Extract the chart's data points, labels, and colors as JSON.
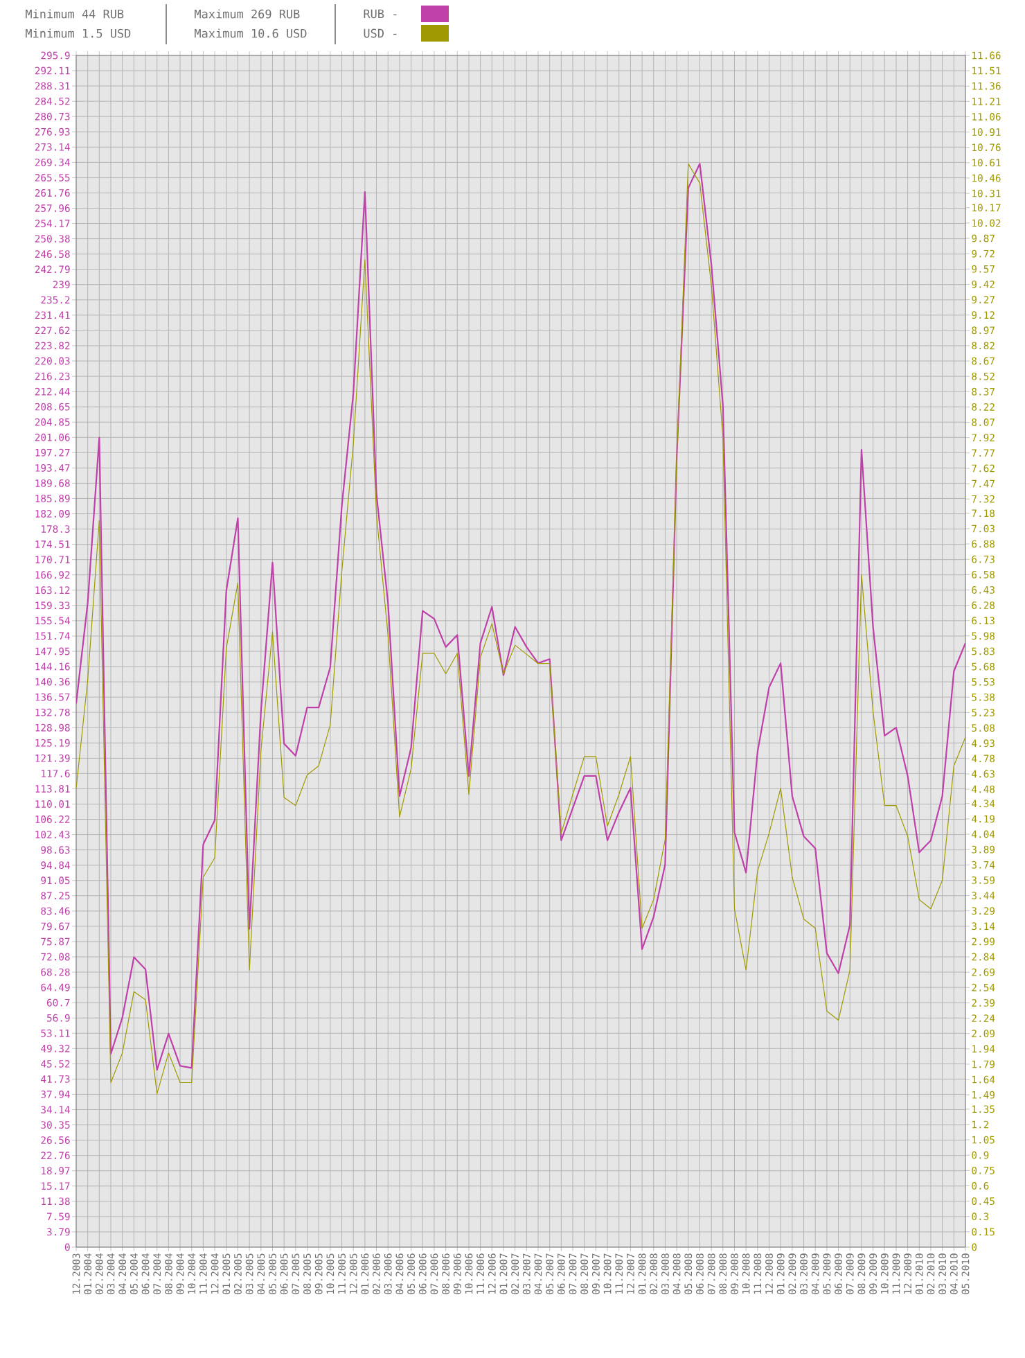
{
  "chart_data": {
    "type": "line",
    "annotations": [
      "Minimum 44 RUB",
      "Minimum 1.5 USD",
      "Maximum 269 RUB",
      "Maximum 10.6 USD"
    ],
    "categories": [
      "12.2003",
      "01.2004",
      "02.2004",
      "03.2004",
      "04.2004",
      "05.2004",
      "06.2004",
      "07.2004",
      "08.2004",
      "09.2004",
      "10.2004",
      "11.2004",
      "12.2004",
      "01.2005",
      "02.2005",
      "03.2005",
      "04.2005",
      "05.2005",
      "06.2005",
      "07.2005",
      "08.2005",
      "09.2005",
      "10.2005",
      "11.2005",
      "12.2005",
      "01.2006",
      "02.2006",
      "03.2006",
      "04.2006",
      "05.2006",
      "06.2006",
      "07.2006",
      "08.2006",
      "09.2006",
      "10.2006",
      "11.2006",
      "12.2006",
      "01.2007",
      "02.2007",
      "03.2007",
      "04.2007",
      "05.2007",
      "06.2007",
      "07.2007",
      "08.2007",
      "09.2007",
      "10.2007",
      "11.2007",
      "12.2007",
      "01.2008",
      "02.2008",
      "03.2008",
      "04.2008",
      "05.2008",
      "06.2008",
      "07.2008",
      "08.2008",
      "09.2008",
      "10.2008",
      "11.2008",
      "12.2008",
      "01.2009",
      "02.2009",
      "03.2009",
      "04.2009",
      "05.2009",
      "06.2009",
      "07.2009",
      "08.2009",
      "09.2009",
      "10.2009",
      "11.2009",
      "12.2009",
      "01.2010",
      "02.2010",
      "03.2010",
      "04.2010",
      "05.2010"
    ],
    "series": [
      {
        "name": "RUB -",
        "color": "#c040aa",
        "axis": "y",
        "values": [
          135,
          160,
          201,
          48,
          57,
          72,
          69,
          44,
          53,
          45,
          44.5,
          100,
          106,
          163,
          181,
          79,
          133,
          170,
          125,
          122,
          134,
          134,
          144,
          184,
          212,
          262,
          187,
          160,
          112,
          124,
          158,
          156,
          149,
          152,
          117,
          150,
          159,
          142,
          154,
          149,
          145,
          146,
          101,
          109,
          117,
          117,
          101,
          108,
          114,
          74,
          82,
          95,
          196,
          263,
          269,
          244,
          209,
          103,
          93,
          123,
          139,
          145,
          112,
          102,
          99,
          73,
          68,
          80,
          198,
          154,
          127,
          129,
          117,
          98,
          101,
          112,
          143,
          150
        ]
      },
      {
        "name": "USD -",
        "color": "#a09a00",
        "axis": "y2",
        "values": [
          4.49,
          5.55,
          7.11,
          1.61,
          1.9,
          2.5,
          2.42,
          1.5,
          1.9,
          1.61,
          1.61,
          3.62,
          3.81,
          5.86,
          6.5,
          2.71,
          4.86,
          6.02,
          4.4,
          4.32,
          4.62,
          4.71,
          5.11,
          6.61,
          7.86,
          9.66,
          7.17,
          5.99,
          4.21,
          4.68,
          5.81,
          5.81,
          5.61,
          5.81,
          4.43,
          5.77,
          6.1,
          5.61,
          5.89,
          5.8,
          5.71,
          5.71,
          4.05,
          4.43,
          4.8,
          4.8,
          4.12,
          4.43,
          4.8,
          3.12,
          3.4,
          3.99,
          7.73,
          10.6,
          10.41,
          9.41,
          7.92,
          3.31,
          2.71,
          3.68,
          4.05,
          4.49,
          3.62,
          3.21,
          3.12,
          2.31,
          2.22,
          2.71,
          6.58,
          5.24,
          4.32,
          4.32,
          4.02,
          3.4,
          3.31,
          3.59,
          4.71,
          4.99
        ]
      }
    ],
    "ylim": [
      0,
      295.9
    ],
    "yticks": [
      0,
      3.79,
      7.59,
      11.38,
      15.17,
      18.97,
      22.76,
      26.56,
      30.35,
      34.14,
      37.94,
      41.73,
      45.52,
      49.32,
      53.11,
      56.9,
      60.7,
      64.49,
      68.28,
      72.08,
      75.87,
      79.67,
      83.46,
      87.25,
      91.05,
      94.84,
      98.63,
      102.43,
      106.22,
      110.01,
      113.81,
      117.6,
      121.39,
      125.19,
      128.98,
      132.78,
      136.57,
      140.36,
      144.16,
      147.95,
      151.74,
      155.54,
      159.33,
      163.12,
      166.92,
      170.71,
      174.51,
      178.3,
      182.09,
      185.89,
      189.68,
      193.47,
      197.27,
      201.06,
      204.85,
      208.65,
      212.44,
      216.23,
      220.03,
      223.82,
      227.62,
      231.41,
      235.2,
      239,
      242.79,
      246.58,
      250.38,
      254.17,
      257.96,
      261.76,
      265.55,
      269.34,
      273.14,
      276.93,
      280.73,
      284.52,
      288.31,
      292.11,
      295.9
    ],
    "y2lim": [
      0,
      11.66
    ],
    "y2ticks": [
      0,
      0.15,
      0.3,
      0.45,
      0.6,
      0.75,
      0.9,
      1.05,
      1.2,
      1.35,
      1.49,
      1.64,
      1.79,
      1.94,
      2.09,
      2.24,
      2.39,
      2.54,
      2.69,
      2.84,
      2.99,
      3.14,
      3.29,
      3.44,
      3.59,
      3.74,
      3.89,
      4.04,
      4.19,
      4.34,
      4.48,
      4.63,
      4.78,
      4.93,
      5.08,
      5.23,
      5.38,
      5.53,
      5.68,
      5.83,
      5.98,
      6.13,
      6.28,
      6.43,
      6.58,
      6.73,
      6.88,
      7.03,
      7.18,
      7.32,
      7.47,
      7.62,
      7.77,
      7.92,
      8.07,
      8.22,
      8.37,
      8.52,
      8.67,
      8.82,
      8.97,
      9.12,
      9.27,
      9.42,
      9.57,
      9.72,
      9.87,
      10.02,
      10.17,
      10.31,
      10.46,
      10.61,
      10.76,
      10.91,
      11.06,
      11.21,
      11.36,
      11.51,
      11.66
    ],
    "grid": true,
    "legend": "top left"
  }
}
